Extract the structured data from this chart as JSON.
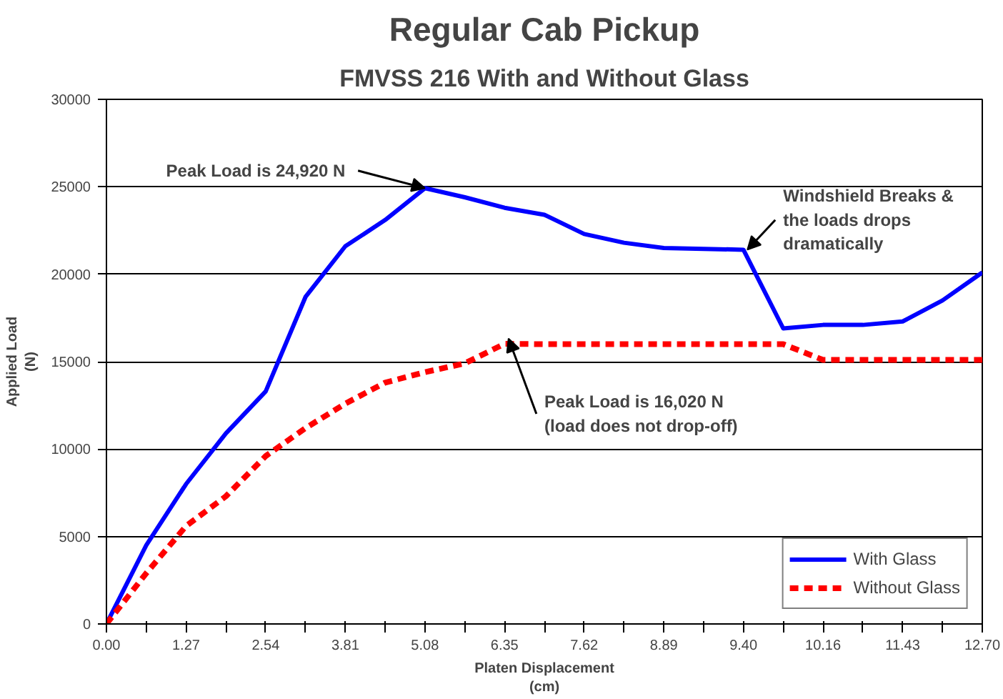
{
  "chart_data": {
    "type": "line",
    "title": "Regular Cab Pickup",
    "subtitle": "FMVSS 216 With and Without Glass",
    "xlabel": "Platen Displacement\n(cm)",
    "ylabel": "Applied Load\n(N)",
    "categories": [
      "0.00",
      null,
      "1.27",
      null,
      "2.54",
      null,
      "3.81",
      null,
      "5.08",
      null,
      "6.35",
      null,
      "7.62",
      null,
      "8.89",
      null,
      "9.40",
      null,
      "10.16",
      null,
      "11.43",
      null,
      "12.70"
    ],
    "series": [
      {
        "name": "With Glass",
        "color": "#0000ff",
        "line_style": "solid",
        "values": [
          0,
          4500,
          8000,
          10900,
          13300,
          18700,
          21600,
          23100,
          24920,
          24400,
          23800,
          23400,
          22300,
          21800,
          21500,
          21450,
          21400,
          16900,
          17100,
          17100,
          17300,
          18500,
          20100
        ]
      },
      {
        "name": "Without Glass",
        "color": "#ff0000",
        "line_style": "dashed",
        "values": [
          0,
          2900,
          5600,
          7300,
          9600,
          11200,
          12600,
          13800,
          14400,
          14900,
          16020,
          16000,
          16000,
          16000,
          16000,
          16000,
          16000,
          16000,
          15100,
          15100,
          15100,
          15100,
          15100
        ]
      }
    ],
    "ylim": [
      0,
      30000
    ],
    "yticks": [
      0,
      5000,
      10000,
      15000,
      20000,
      25000,
      30000
    ],
    "grid": "y",
    "legend": "bottom right",
    "marker": "none",
    "annotations": [
      {
        "text": "Peak Load is 24,920 N",
        "x": "5.08",
        "y": 24920
      },
      {
        "text": "Windshield Breaks &\nthe loads drops\ndramatically",
        "x": "9.40",
        "y": 21400
      },
      {
        "text": "Peak Load is 16,020 N\n(load does not drop-off)",
        "x": "6.35",
        "y": 16020
      }
    ]
  }
}
